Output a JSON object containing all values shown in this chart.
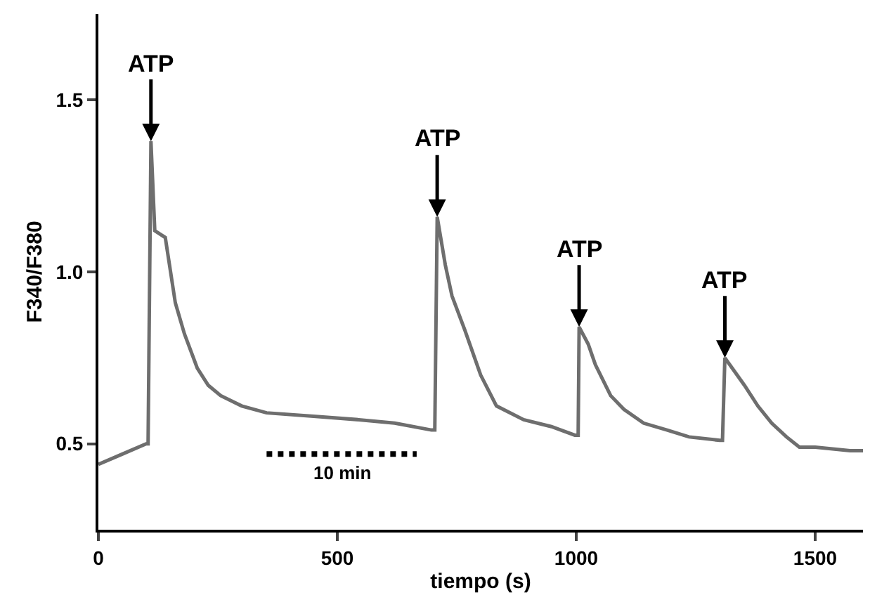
{
  "chart_data": {
    "type": "line",
    "xlabel": "tiempo (s)",
    "ylabel": "F340/F380",
    "xlim": [
      0,
      1600
    ],
    "xticks": [
      0,
      500,
      1000,
      1500
    ],
    "ylim": [
      0.25,
      1.75
    ],
    "yticks": [
      {
        "value": 0.5,
        "label": "0.5"
      },
      {
        "value": 1.0,
        "label": "1.0"
      },
      {
        "value": 1.5,
        "label": "1.5"
      }
    ],
    "marker": "none",
    "line_style": "solid",
    "x": [
      0,
      50,
      100,
      104,
      110,
      118,
      140,
      161,
      180,
      207,
      230,
      256,
      300,
      352,
      450,
      545,
      620,
      697,
      704,
      709,
      726,
      740,
      767,
      800,
      833,
      890,
      948,
      997,
      1004,
      1006,
      1025,
      1040,
      1072,
      1100,
      1141,
      1190,
      1236,
      1300,
      1306,
      1311,
      1352,
      1380,
      1409,
      1440,
      1467,
      1500,
      1573,
      1600
    ],
    "series": [
      {
        "color": "#6e6e6e",
        "values": [
          0.44,
          0.47,
          0.5,
          0.5,
          1.38,
          1.12,
          1.1,
          0.91,
          0.82,
          0.72,
          0.67,
          0.64,
          0.61,
          0.59,
          0.58,
          0.57,
          0.56,
          0.54,
          0.54,
          1.16,
          1.02,
          0.93,
          0.83,
          0.7,
          0.61,
          0.57,
          0.55,
          0.525,
          0.525,
          0.84,
          0.79,
          0.73,
          0.64,
          0.6,
          0.56,
          0.54,
          0.52,
          0.51,
          0.51,
          0.75,
          0.67,
          0.61,
          0.56,
          0.52,
          0.49,
          0.49,
          0.48,
          0.48
        ]
      },
      {
        "color": "#000000",
        "line_style": "dotted",
        "x": [
          352,
          666
        ],
        "values": [
          0.47,
          0.47
        ]
      }
    ],
    "annotations": [
      {
        "text": "ATP",
        "x": 110,
        "y": 1.38
      },
      {
        "text": "ATP",
        "x": 709,
        "y": 1.16
      },
      {
        "text": "ATP",
        "x": 1006,
        "y": 0.84
      },
      {
        "text": "ATP",
        "x": 1311,
        "y": 0.75
      },
      {
        "text": "10 min",
        "x": 509,
        "y": 0.47
      }
    ]
  }
}
